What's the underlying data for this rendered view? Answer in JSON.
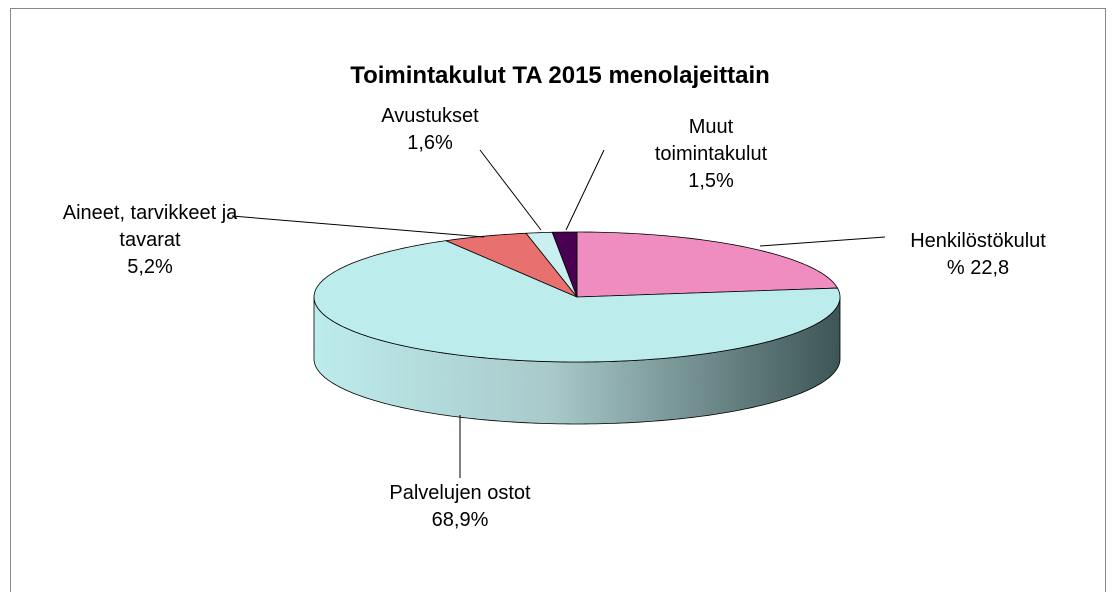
{
  "chart_data": {
    "type": "pie",
    "title": "Toimintakulut TA 2015 menolajeittain",
    "categories": [
      "Henkilöstökulut",
      "Palvelujen ostot",
      "Aineet, tarvikkeet ja tavarat",
      "Avustukset",
      "Muut toimintakulut"
    ],
    "values": [
      22.8,
      68.9,
      5.2,
      1.6,
      1.5
    ],
    "value_labels": [
      "% 22,8",
      "68,9%",
      "5,2%",
      "1,6%",
      "1,5%"
    ],
    "colors": [
      "#ef8dc1",
      "#bdeced",
      "#e8716f",
      "#c9eff1",
      "#4a0050"
    ]
  }
}
